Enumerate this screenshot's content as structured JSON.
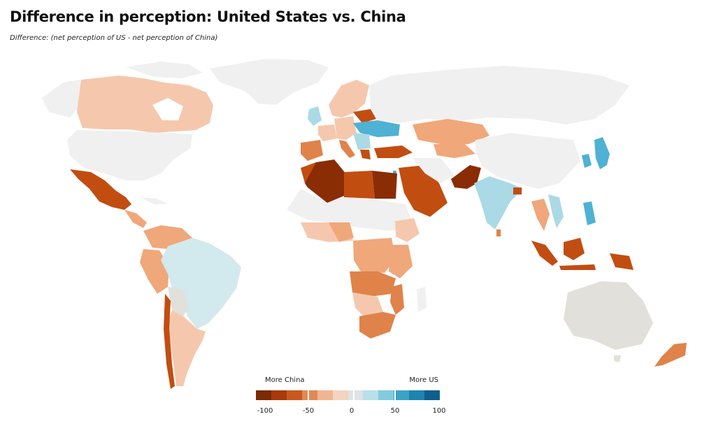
{
  "title": "Difference in perception: United States vs. China",
  "subtitle": "Difference: (net perception of US - net perception of China)",
  "legend": {
    "left_label": "More China",
    "right_label": "More US",
    "ticks": [
      "-100",
      "-50",
      "0",
      "50",
      "100"
    ],
    "colors": [
      "#7a2a05",
      "#a83a0b",
      "#c9581e",
      "#e08a55",
      "#f1b591",
      "#f4d3c0",
      "#dfe3e3",
      "#b7e0e8",
      "#82cbdd",
      "#3da3c6",
      "#1d84b1",
      "#0e5f8e"
    ]
  },
  "colors": {
    "no_data": "#f0f0f0",
    "strong_china": "#8a2c04",
    "china": "#c24d11",
    "mid_china": "#e0834a",
    "light_china": "#f0a77a",
    "pale_china": "#f5c8ad",
    "neutral": "#e2e0da",
    "pale_us": "#d2e9ed",
    "light_us": "#a9dae6",
    "us": "#4fb1d3"
  }
}
